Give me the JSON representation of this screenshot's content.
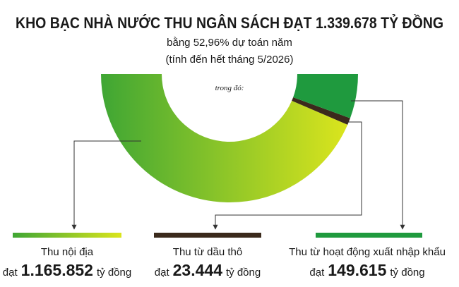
{
  "chart_data": {
    "type": "semi-donut",
    "title": "KHO BẠC NHÀ NƯỚC THU NGÂN SÁCH ĐẠT 1.339.678 TỶ ĐỒNG",
    "subtitles": [
      "bằng 52,96% dự toán năm",
      "(tính đến hết tháng 5/2026)"
    ],
    "inner_label": "trong đó:",
    "categories": [
      "Thu nội địa",
      "Thu từ dầu thô",
      "Thu từ hoạt động xuất nhập khẩu"
    ],
    "values": [
      1165852,
      23444,
      149615
    ],
    "value_labels": [
      "1.165.852",
      "23.444",
      "149.615"
    ],
    "value_prefix": "đạt",
    "unit": "tỷ đồng",
    "colors": [
      [
        "#3fa634",
        "#dbe51d"
      ],
      "#3b2a1c",
      "#1f9a3e"
    ]
  }
}
